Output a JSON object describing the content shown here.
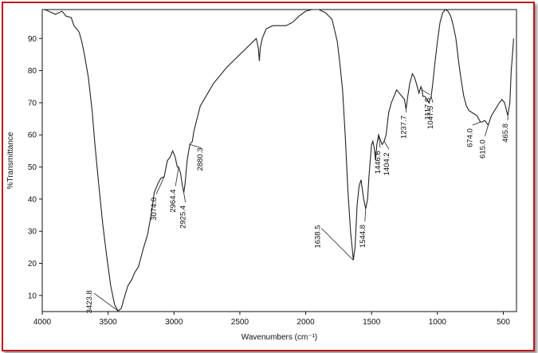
{
  "chart_data": {
    "type": "line",
    "xlabel": "Wavenumbers (cm⁻¹)",
    "ylabel": "%Transmittance",
    "xlim": [
      4000,
      400
    ],
    "ylim": [
      5,
      99
    ],
    "x_ticks": [
      4000,
      3500,
      3000,
      2500,
      2000,
      1500,
      1000,
      500
    ],
    "y_ticks": [
      10,
      20,
      30,
      40,
      50,
      60,
      70,
      80,
      90
    ],
    "grid": false,
    "series": [
      {
        "color": "#222222",
        "points": [
          [
            3980,
            99
          ],
          [
            3900,
            97.5
          ],
          [
            3850,
            98.5
          ],
          [
            3820,
            97
          ],
          [
            3780,
            96.5
          ],
          [
            3760,
            94
          ],
          [
            3720,
            92
          ],
          [
            3700,
            89
          ],
          [
            3680,
            85
          ],
          [
            3650,
            78
          ],
          [
            3620,
            67
          ],
          [
            3600,
            57
          ],
          [
            3570,
            44
          ],
          [
            3540,
            32
          ],
          [
            3510,
            22
          ],
          [
            3480,
            13
          ],
          [
            3450,
            7
          ],
          [
            3423.8,
            5.2
          ],
          [
            3400,
            6
          ],
          [
            3380,
            9
          ],
          [
            3350,
            13
          ],
          [
            3320,
            15
          ],
          [
            3300,
            17
          ],
          [
            3270,
            19
          ],
          [
            3250,
            22
          ],
          [
            3230,
            25
          ],
          [
            3200,
            29
          ],
          [
            3170,
            36
          ],
          [
            3150,
            42
          ],
          [
            3120,
            45
          ],
          [
            3100,
            46.5
          ],
          [
            3074,
            47
          ],
          [
            3050,
            52
          ],
          [
            3030,
            53
          ],
          [
            3010,
            55
          ],
          [
            2990,
            53
          ],
          [
            2975,
            50
          ],
          [
            2964.4,
            50
          ],
          [
            2950,
            48
          ],
          [
            2935,
            44
          ],
          [
            2925.4,
            42
          ],
          [
            2915,
            45
          ],
          [
            2900,
            52
          ],
          [
            2880.3,
            57
          ],
          [
            2860,
            58
          ],
          [
            2850,
            61
          ],
          [
            2800,
            69
          ],
          [
            2700,
            76
          ],
          [
            2600,
            81
          ],
          [
            2500,
            85
          ],
          [
            2450,
            87
          ],
          [
            2400,
            89
          ],
          [
            2375,
            90
          ],
          [
            2360,
            87
          ],
          [
            2352,
            83
          ],
          [
            2345,
            87
          ],
          [
            2330,
            90
          ],
          [
            2300,
            93
          ],
          [
            2250,
            94
          ],
          [
            2150,
            94
          ],
          [
            2100,
            95
          ],
          [
            2050,
            97
          ],
          [
            2000,
            98.5
          ],
          [
            1950,
            99
          ],
          [
            1900,
            99
          ],
          [
            1850,
            98
          ],
          [
            1800,
            96
          ],
          [
            1760,
            89
          ],
          [
            1740,
            82
          ],
          [
            1720,
            74
          ],
          [
            1700,
            60
          ],
          [
            1680,
            43
          ],
          [
            1660,
            30
          ],
          [
            1645,
            24
          ],
          [
            1638.5,
            21
          ],
          [
            1625,
            25
          ],
          [
            1610,
            38
          ],
          [
            1595,
            44
          ],
          [
            1580,
            46
          ],
          [
            1570,
            43
          ],
          [
            1560,
            40
          ],
          [
            1544.8,
            37
          ],
          [
            1530,
            40
          ],
          [
            1520,
            47
          ],
          [
            1510,
            52
          ],
          [
            1500,
            57
          ],
          [
            1490,
            58
          ],
          [
            1480,
            56
          ],
          [
            1470,
            52
          ],
          [
            1460,
            57
          ],
          [
            1446.6,
            60
          ],
          [
            1430,
            58
          ],
          [
            1420,
            57
          ],
          [
            1404.2,
            58
          ],
          [
            1390,
            60
          ],
          [
            1370,
            67
          ],
          [
            1350,
            70
          ],
          [
            1330,
            72
          ],
          [
            1310,
            74
          ],
          [
            1290,
            73
          ],
          [
            1270,
            72
          ],
          [
            1250,
            71
          ],
          [
            1237.7,
            68
          ],
          [
            1225,
            72
          ],
          [
            1210,
            76
          ],
          [
            1190,
            79
          ],
          [
            1175,
            78
          ],
          [
            1160,
            76
          ],
          [
            1140,
            73
          ],
          [
            1125,
            75
          ],
          [
            1117.8,
            74
          ],
          [
            1110,
            72
          ],
          [
            1095,
            72
          ],
          [
            1080,
            71
          ],
          [
            1065,
            70
          ],
          [
            1047.5,
            72
          ],
          [
            1035,
            76
          ],
          [
            1020,
            82
          ],
          [
            1000,
            89
          ],
          [
            980,
            95
          ],
          [
            960,
            98
          ],
          [
            940,
            99
          ],
          [
            920,
            98.5
          ],
          [
            900,
            97
          ],
          [
            880,
            94
          ],
          [
            860,
            90
          ],
          [
            840,
            83
          ],
          [
            820,
            77
          ],
          [
            800,
            72
          ],
          [
            780,
            69
          ],
          [
            760,
            67.5
          ],
          [
            740,
            67
          ],
          [
            720,
            66.5
          ],
          [
            700,
            66
          ],
          [
            674,
            64
          ],
          [
            660,
            64
          ],
          [
            640,
            64.5
          ],
          [
            615,
            63
          ],
          [
            590,
            66
          ],
          [
            560,
            68
          ],
          [
            530,
            70
          ],
          [
            510,
            71
          ],
          [
            490,
            70
          ],
          [
            465.8,
            66
          ],
          [
            450,
            70
          ],
          [
            440,
            80
          ],
          [
            430,
            85
          ],
          [
            422,
            90
          ]
        ]
      }
    ],
    "annotations": [
      {
        "x": 3423.8,
        "y": 5.2,
        "label": "3423.8"
      },
      {
        "x": 3074,
        "y": 47,
        "label": "3074.0"
      },
      {
        "x": 2964.4,
        "y": 50,
        "label": "2964.4"
      },
      {
        "x": 2925.4,
        "y": 42,
        "label": "2925.4"
      },
      {
        "x": 2880.3,
        "y": 57,
        "label": "2880.3"
      },
      {
        "x": 1638.5,
        "y": 21,
        "label": "1638.5"
      },
      {
        "x": 1544.8,
        "y": 37,
        "label": "1544.8"
      },
      {
        "x": 1446.6,
        "y": 60,
        "label": "1446.6"
      },
      {
        "x": 1404.2,
        "y": 58,
        "label": "1404.2"
      },
      {
        "x": 1237.7,
        "y": 68,
        "label": "1237.7"
      },
      {
        "x": 1117.8,
        "y": 74,
        "label": "1117.8"
      },
      {
        "x": 1047.5,
        "y": 72,
        "label": "1047.5"
      },
      {
        "x": 674,
        "y": 64,
        "label": "674.0"
      },
      {
        "x": 615,
        "y": 63,
        "label": "615.0"
      },
      {
        "x": 465.8,
        "y": 66,
        "label": "465.8"
      }
    ]
  },
  "colors": {
    "frame_border": "#c0161c",
    "axis": "#111111",
    "line": "#222222"
  }
}
